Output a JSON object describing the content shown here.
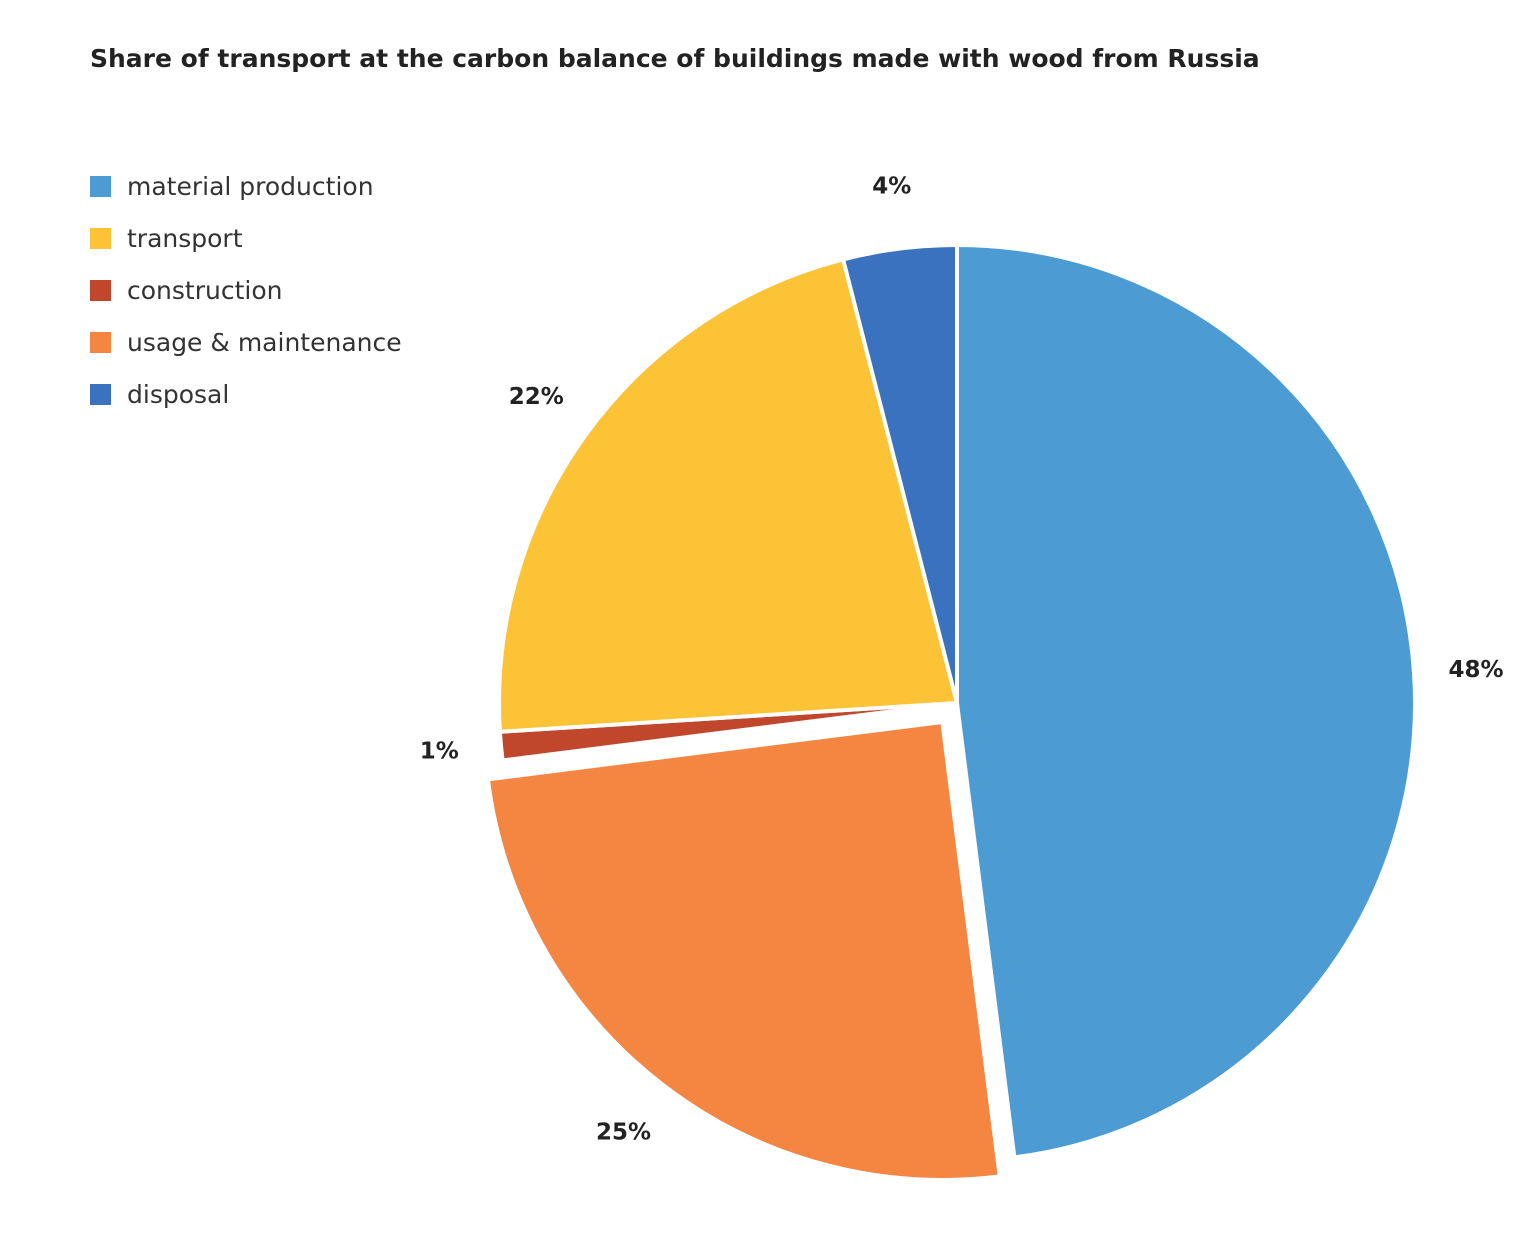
{
  "chart_data": {
    "type": "pie",
    "title": "Share of transport at the carbon balance of buildings made with wood from Russia",
    "legend_position": "top-left",
    "slices": [
      {
        "name": "material production",
        "value": 48,
        "label": "48%",
        "color": "#4d9bd3",
        "exploded": false
      },
      {
        "name": "usage & maintenance",
        "value": 25,
        "label": "25%",
        "color": "#f48642",
        "exploded": true
      },
      {
        "name": "construction",
        "value": 1,
        "label": "1%",
        "color": "#c0472b",
        "exploded": false
      },
      {
        "name": "transport",
        "value": 22,
        "label": "22%",
        "color": "#fdc336",
        "exploded": false
      },
      {
        "name": "disposal",
        "value": 4,
        "label": "4%",
        "color": "#3a72c0",
        "exploded": false
      }
    ],
    "legend": [
      {
        "name": "material production",
        "color": "#4d9bd3"
      },
      {
        "name": "transport",
        "color": "#fdc336"
      },
      {
        "name": "construction",
        "color": "#c0472b"
      },
      {
        "name": "usage & maintenance",
        "color": "#f48642"
      },
      {
        "name": "disposal",
        "color": "#3a72c0"
      }
    ]
  }
}
